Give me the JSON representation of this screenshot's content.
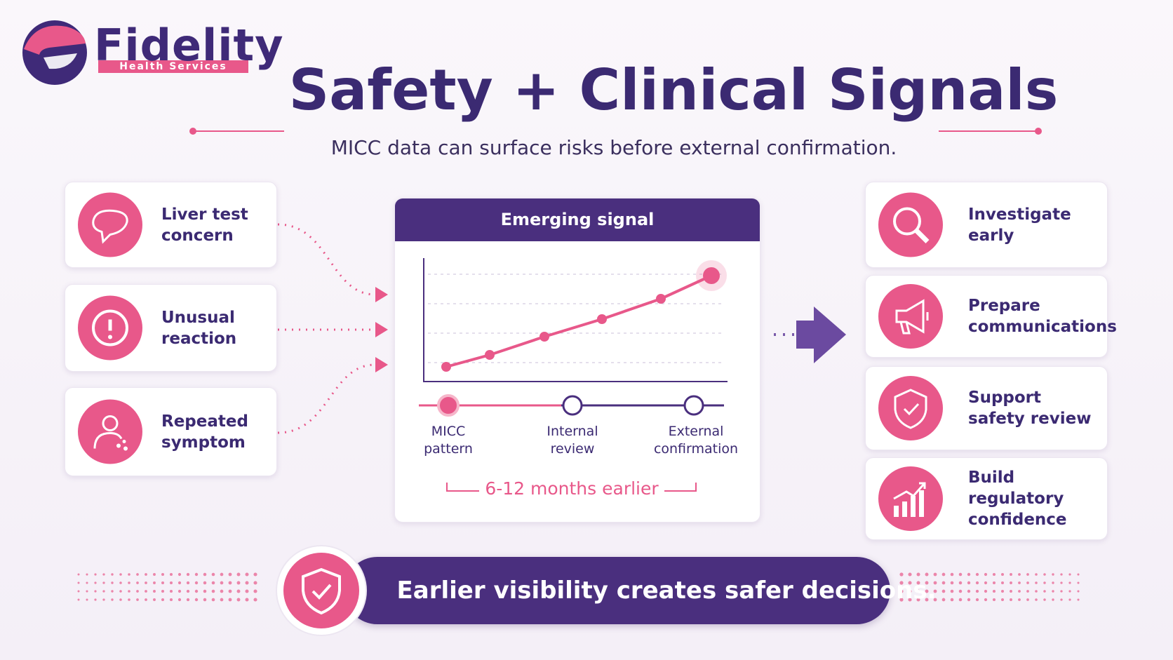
{
  "logo": {
    "name": "Fidelity",
    "tagline": "Health Services"
  },
  "header": {
    "title": "Safety + Clinical Signals",
    "subtitle": "MICC data can surface risks before external confirmation."
  },
  "inputs": [
    {
      "lines": [
        "Liver test",
        "concern"
      ]
    },
    {
      "lines": [
        "Unusual",
        "reaction"
      ]
    },
    {
      "lines": [
        "Repeated",
        "symptom"
      ]
    }
  ],
  "signal_panel": {
    "title": "Emerging signal",
    "milestones": [
      {
        "lines": [
          "MICC",
          "pattern"
        ]
      },
      {
        "lines": [
          "Internal",
          "review"
        ]
      },
      {
        "lines": [
          "External",
          "confirmation"
        ]
      }
    ],
    "span_label": "6-12 months earlier"
  },
  "outcomes": [
    {
      "lines": [
        "Investigate",
        "early"
      ]
    },
    {
      "lines": [
        "Prepare",
        "communications"
      ]
    },
    {
      "lines": [
        "Support",
        "safety review"
      ]
    },
    {
      "lines": [
        "Build",
        "regulatory",
        "confidence"
      ]
    }
  ],
  "banner": "Earlier visibility creates safer decisions."
}
